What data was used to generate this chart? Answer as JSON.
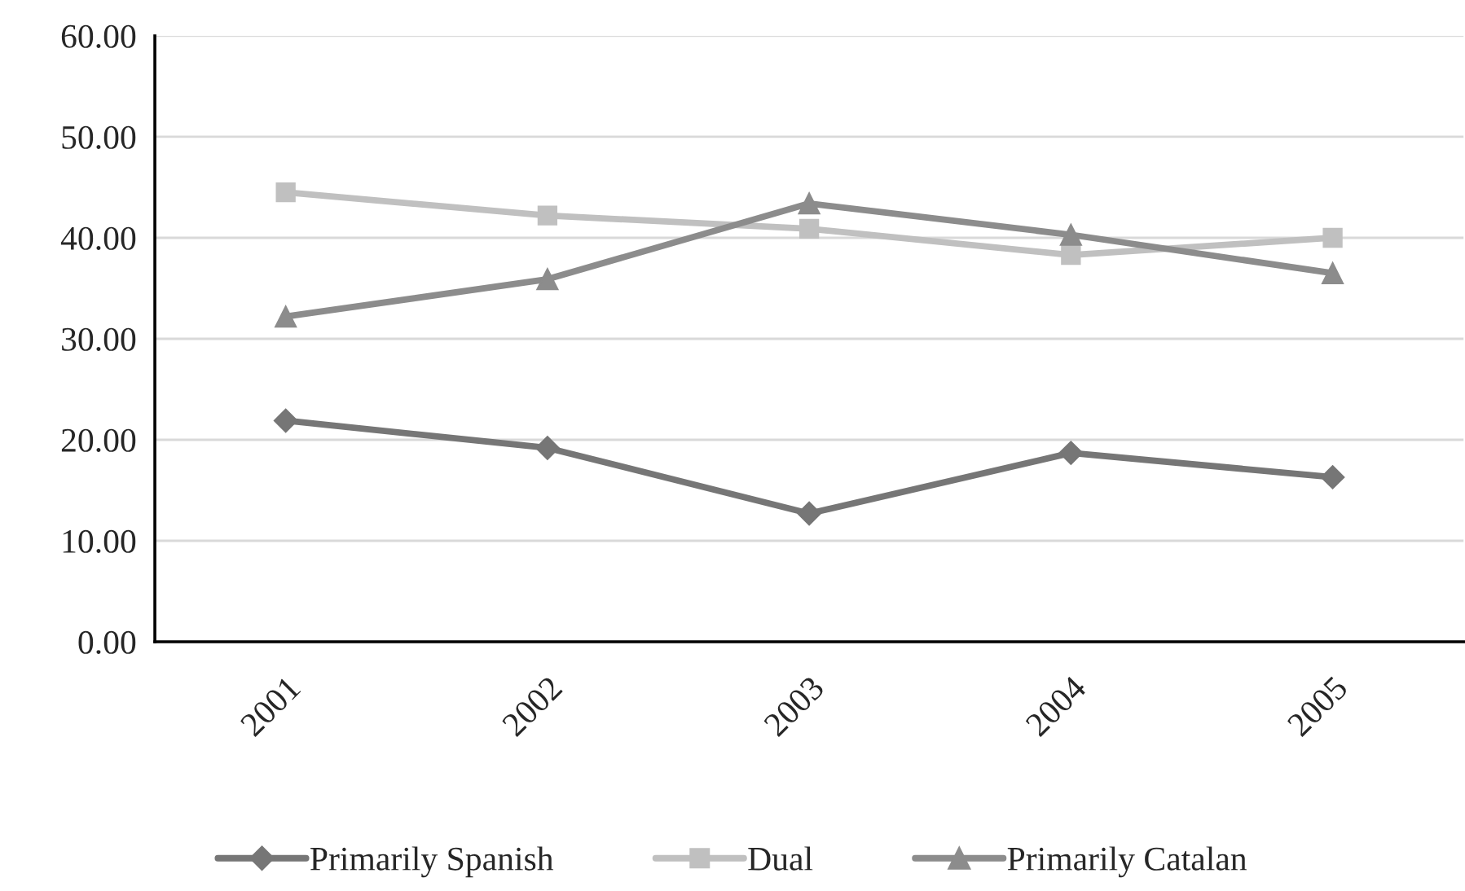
{
  "chart_data": {
    "type": "line",
    "categories": [
      "2001",
      "2002",
      "2003",
      "2004",
      "2005"
    ],
    "series": [
      {
        "name": "Primarily Spanish",
        "color": "#767676",
        "marker": "diamond",
        "values": [
          21.9,
          19.2,
          12.7,
          18.7,
          16.3
        ]
      },
      {
        "name": "Dual",
        "color": "#c0c0c0",
        "marker": "square",
        "values": [
          44.5,
          42.2,
          40.9,
          38.3,
          40.0
        ]
      },
      {
        "name": "Primarily Catalan",
        "color": "#8c8c8c",
        "marker": "triangle",
        "values": [
          32.2,
          35.9,
          43.4,
          40.3,
          36.5
        ]
      }
    ],
    "ylim": [
      0,
      60
    ],
    "yticks": [
      {
        "value": 0,
        "label": "0.00"
      },
      {
        "value": 10,
        "label": "10.00"
      },
      {
        "value": 20,
        "label": "20.00"
      },
      {
        "value": 30,
        "label": "30.00"
      },
      {
        "value": 40,
        "label": "40.00"
      },
      {
        "value": 50,
        "label": "50.00"
      },
      {
        "value": 60,
        "label": "60.00"
      }
    ],
    "grid": "y",
    "legend": "bottom",
    "line_style": "solid"
  }
}
